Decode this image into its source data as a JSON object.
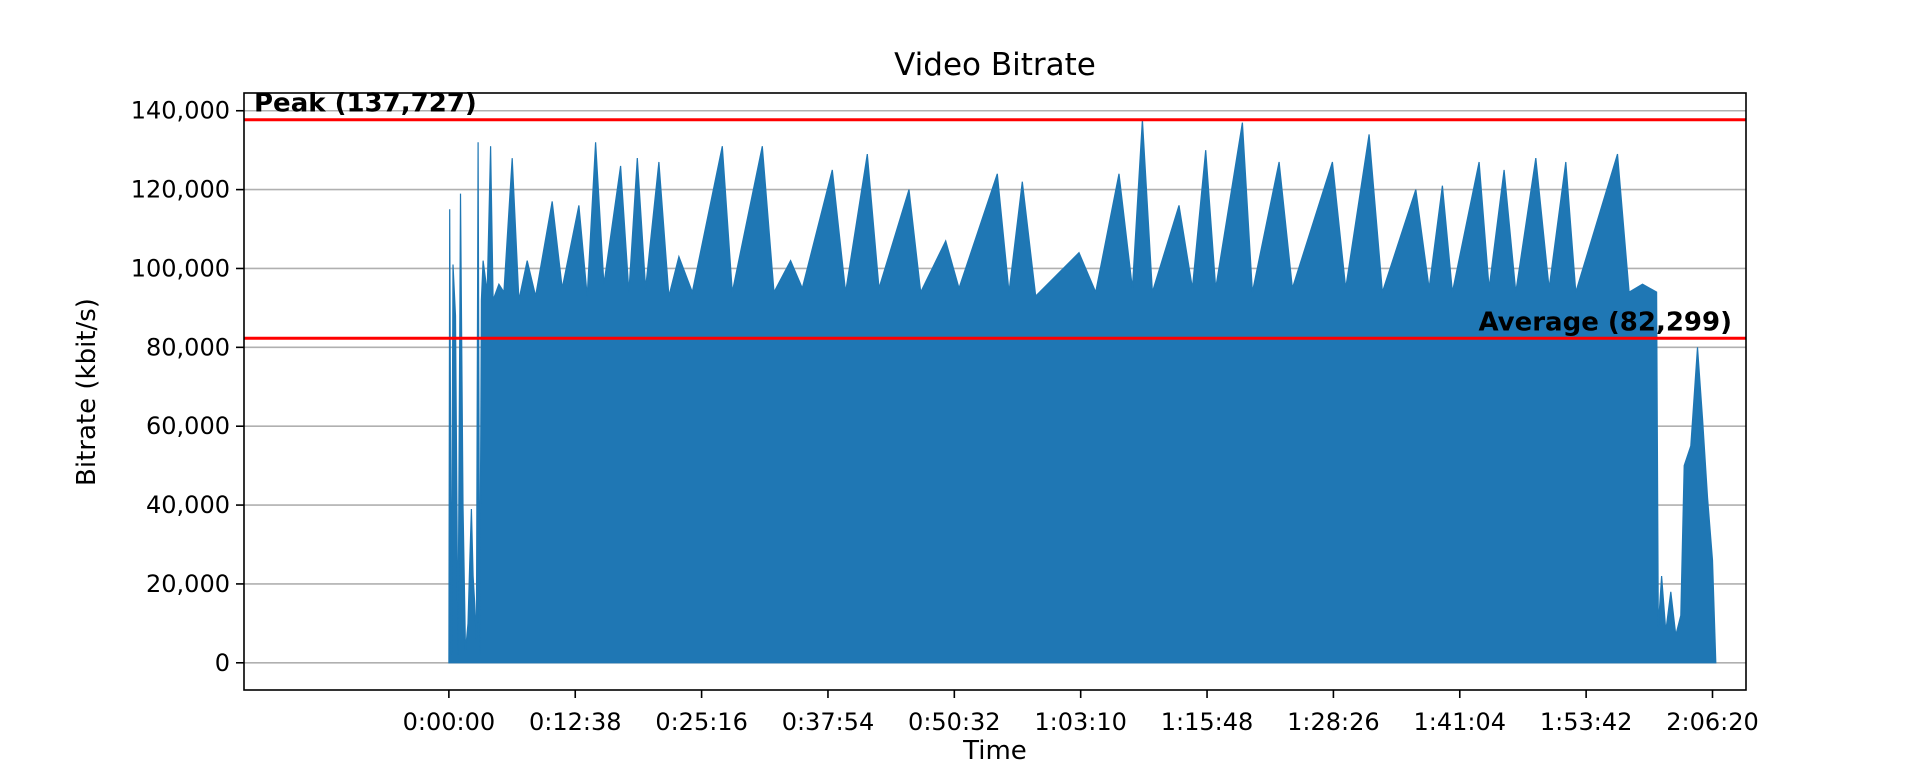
{
  "chart_data": {
    "type": "area",
    "title": "Video Bitrate",
    "xlabel": "Time",
    "ylabel": "Bitrate (kbit/s)",
    "x_unit": "seconds",
    "xlim": [
      -1229,
      7781
    ],
    "ylim": [
      -6900,
      144500
    ],
    "x_ticks": [
      {
        "value": 0,
        "label": "0:00:00"
      },
      {
        "value": 758,
        "label": "0:12:38"
      },
      {
        "value": 1516,
        "label": "0:25:16"
      },
      {
        "value": 2274,
        "label": "0:37:54"
      },
      {
        "value": 3032,
        "label": "0:50:32"
      },
      {
        "value": 3790,
        "label": "1:03:10"
      },
      {
        "value": 4548,
        "label": "1:15:48"
      },
      {
        "value": 5306,
        "label": "1:28:26"
      },
      {
        "value": 6064,
        "label": "1:41:04"
      },
      {
        "value": 6822,
        "label": "1:53:42"
      },
      {
        "value": 7580,
        "label": "2:06:20"
      }
    ],
    "y_ticks": [
      {
        "value": 0,
        "label": "0"
      },
      {
        "value": 20000,
        "label": "20,000"
      },
      {
        "value": 40000,
        "label": "40,000"
      },
      {
        "value": 60000,
        "label": "60,000"
      },
      {
        "value": 80000,
        "label": "80,000"
      },
      {
        "value": 100000,
        "label": "100,000"
      },
      {
        "value": 120000,
        "label": "120,000"
      },
      {
        "value": 140000,
        "label": "140,000"
      }
    ],
    "grid": "horizontal",
    "series": [
      {
        "color": "#1f77b4",
        "points": [
          [
            0,
            0
          ],
          [
            5,
            115000
          ],
          [
            15,
            2000
          ],
          [
            25,
            101000
          ],
          [
            40,
            88000
          ],
          [
            55,
            2000
          ],
          [
            70,
            119000
          ],
          [
            85,
            40000
          ],
          [
            100,
            3000
          ],
          [
            115,
            10000
          ],
          [
            125,
            25000
          ],
          [
            135,
            39000
          ],
          [
            145,
            22000
          ],
          [
            155,
            15000
          ],
          [
            165,
            6000
          ],
          [
            175,
            132000
          ],
          [
            185,
            2000
          ],
          [
            195,
            92000
          ],
          [
            205,
            102000
          ],
          [
            230,
            94000
          ],
          [
            250,
            131000
          ],
          [
            265,
            92000
          ],
          [
            300,
            96000
          ],
          [
            330,
            94000
          ],
          [
            380,
            128000
          ],
          [
            420,
            92000
          ],
          [
            470,
            102000
          ],
          [
            520,
            93000
          ],
          [
            620,
            117000
          ],
          [
            680,
            95000
          ],
          [
            780,
            116000
          ],
          [
            830,
            93000
          ],
          [
            880,
            132000
          ],
          [
            930,
            96000
          ],
          [
            1030,
            126000
          ],
          [
            1080,
            94000
          ],
          [
            1130,
            128000
          ],
          [
            1180,
            95000
          ],
          [
            1260,
            127000
          ],
          [
            1320,
            93000
          ],
          [
            1380,
            103000
          ],
          [
            1460,
            94000
          ],
          [
            1640,
            131000
          ],
          [
            1700,
            94000
          ],
          [
            1880,
            131000
          ],
          [
            1950,
            94000
          ],
          [
            2050,
            102000
          ],
          [
            2120,
            95000
          ],
          [
            2300,
            125000
          ],
          [
            2380,
            94000
          ],
          [
            2510,
            129000
          ],
          [
            2580,
            95000
          ],
          [
            2760,
            120000
          ],
          [
            2830,
            94000
          ],
          [
            2980,
            107000
          ],
          [
            3060,
            95000
          ],
          [
            3290,
            124000
          ],
          [
            3360,
            94000
          ],
          [
            3440,
            122000
          ],
          [
            3520,
            93000
          ],
          [
            3780,
            104000
          ],
          [
            3880,
            94000
          ],
          [
            4020,
            124000
          ],
          [
            4100,
            95000
          ],
          [
            4160,
            137700
          ],
          [
            4220,
            94000
          ],
          [
            4380,
            116000
          ],
          [
            4460,
            95000
          ],
          [
            4540,
            130000
          ],
          [
            4600,
            95000
          ],
          [
            4760,
            137000
          ],
          [
            4820,
            94000
          ],
          [
            4980,
            127000
          ],
          [
            5060,
            95000
          ],
          [
            5300,
            127000
          ],
          [
            5380,
            95000
          ],
          [
            5520,
            134000
          ],
          [
            5600,
            94000
          ],
          [
            5800,
            120000
          ],
          [
            5880,
            95000
          ],
          [
            5960,
            121000
          ],
          [
            6020,
            94000
          ],
          [
            6180,
            127000
          ],
          [
            6240,
            95000
          ],
          [
            6330,
            125000
          ],
          [
            6400,
            94000
          ],
          [
            6520,
            128000
          ],
          [
            6600,
            95000
          ],
          [
            6700,
            127000
          ],
          [
            6760,
            94000
          ],
          [
            7010,
            129000
          ],
          [
            7080,
            94000
          ],
          [
            7160,
            96000
          ],
          [
            7245,
            94000
          ],
          [
            7255,
            9000
          ],
          [
            7275,
            22000
          ],
          [
            7300,
            8000
          ],
          [
            7330,
            18000
          ],
          [
            7360,
            7000
          ],
          [
            7390,
            12000
          ],
          [
            7410,
            50000
          ],
          [
            7450,
            55000
          ],
          [
            7490,
            80000
          ],
          [
            7520,
            62000
          ],
          [
            7550,
            42000
          ],
          [
            7580,
            26000
          ],
          [
            7600,
            0
          ]
        ]
      }
    ],
    "reference_lines": [
      {
        "name": "Peak",
        "value": 137727,
        "label": "Peak (137,727)",
        "color": "#ff0000"
      },
      {
        "name": "Average",
        "value": 82299,
        "label": "Average (82,299)",
        "color": "#ff0000"
      }
    ]
  }
}
